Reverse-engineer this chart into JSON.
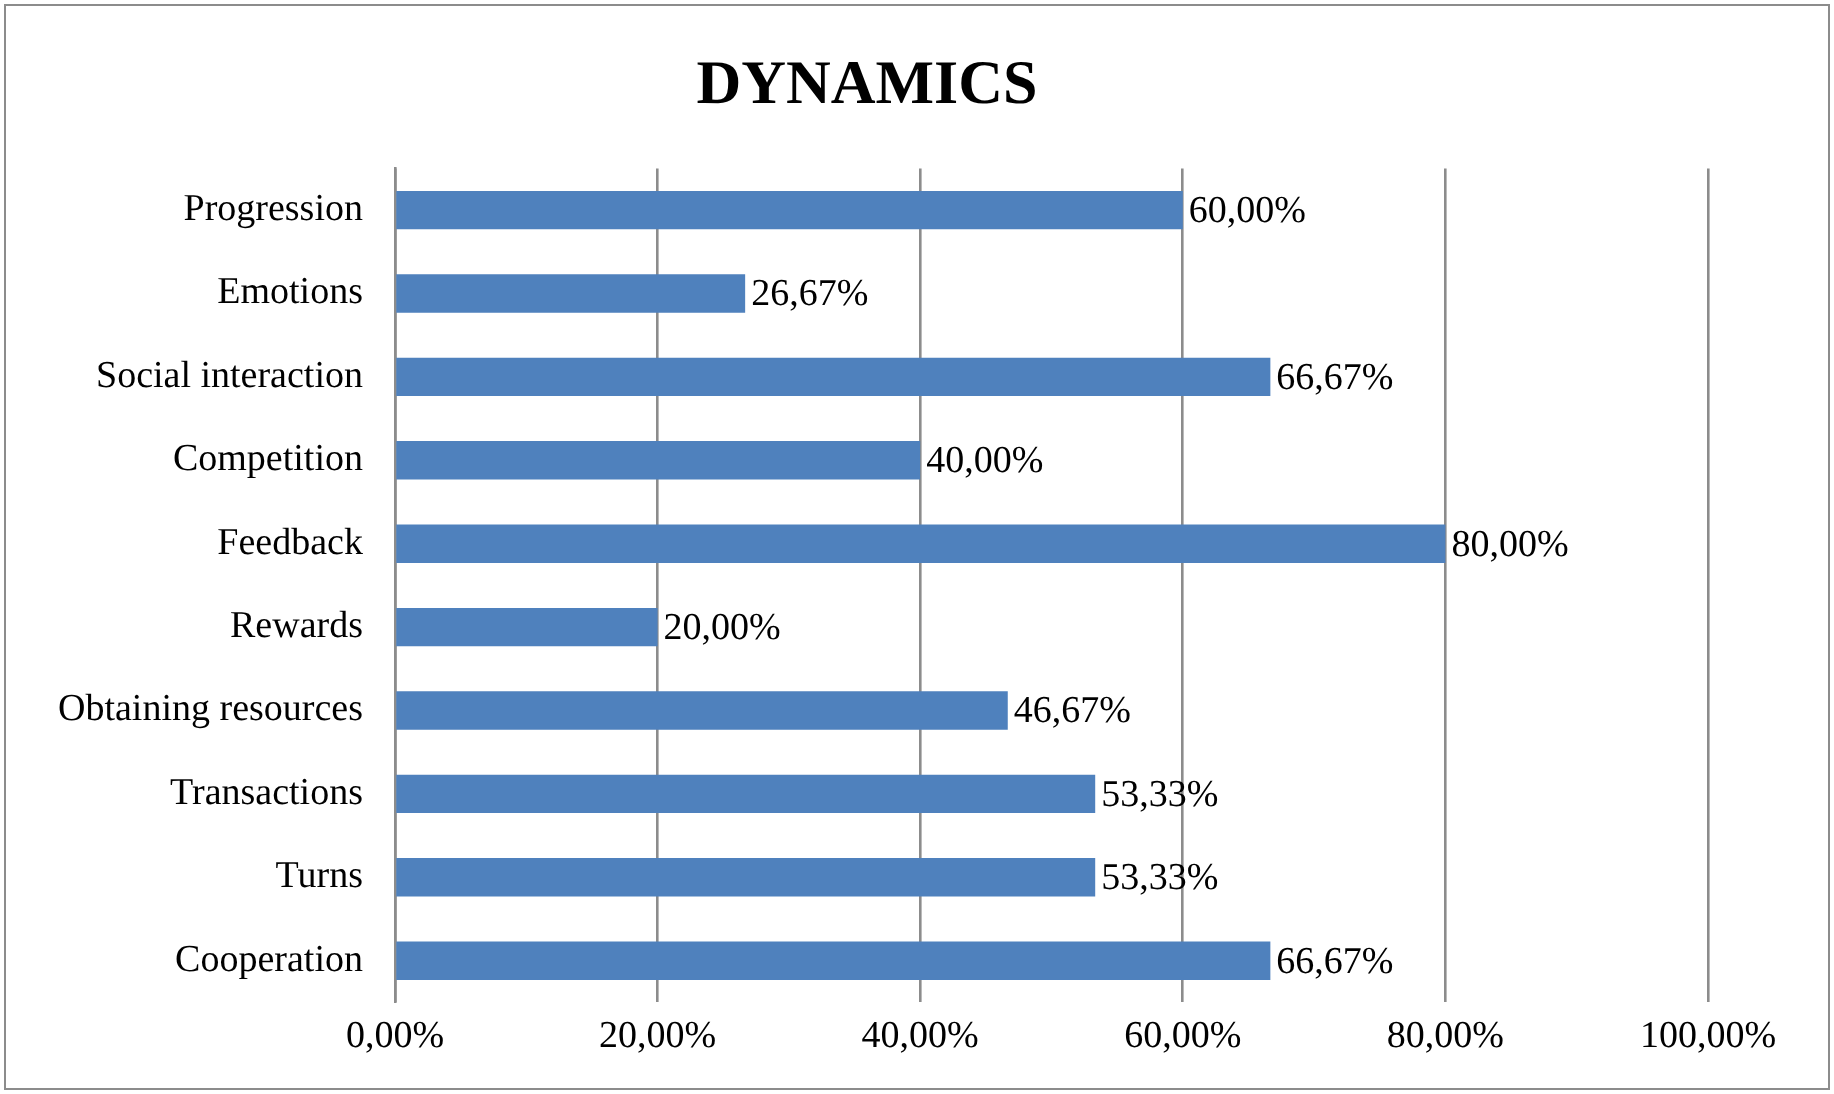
{
  "chart_data": {
    "type": "bar",
    "orientation": "horizontal",
    "title": "DYNAMICS",
    "categories": [
      "Progression",
      "Emotions",
      "Social interaction",
      "Competition",
      "Feedback",
      "Rewards",
      "Obtaining resources",
      "Transactions",
      "Turns",
      "Cooperation"
    ],
    "values": [
      60,
      26.67,
      66.67,
      40,
      80,
      20,
      46.67,
      53.33,
      53.33,
      66.67
    ],
    "value_labels": [
      "60,00%",
      "26,67%",
      "66,67%",
      "40,00%",
      "80,00%",
      "20,00%",
      "46,67%",
      "53,33%",
      "53,33%",
      "66,67%"
    ],
    "color": "#4f81bd",
    "xlim": [
      0,
      100
    ],
    "xticks": [
      {
        "value": 0,
        "label": "0,00%"
      },
      {
        "value": 20,
        "label": "20,00%"
      },
      {
        "value": 40,
        "label": "40,00%"
      },
      {
        "value": 60,
        "label": "60,00%"
      },
      {
        "value": 80,
        "label": "80,00%"
      },
      {
        "value": 100,
        "label": "100,00%"
      }
    ],
    "grid": "x",
    "legend": false
  }
}
